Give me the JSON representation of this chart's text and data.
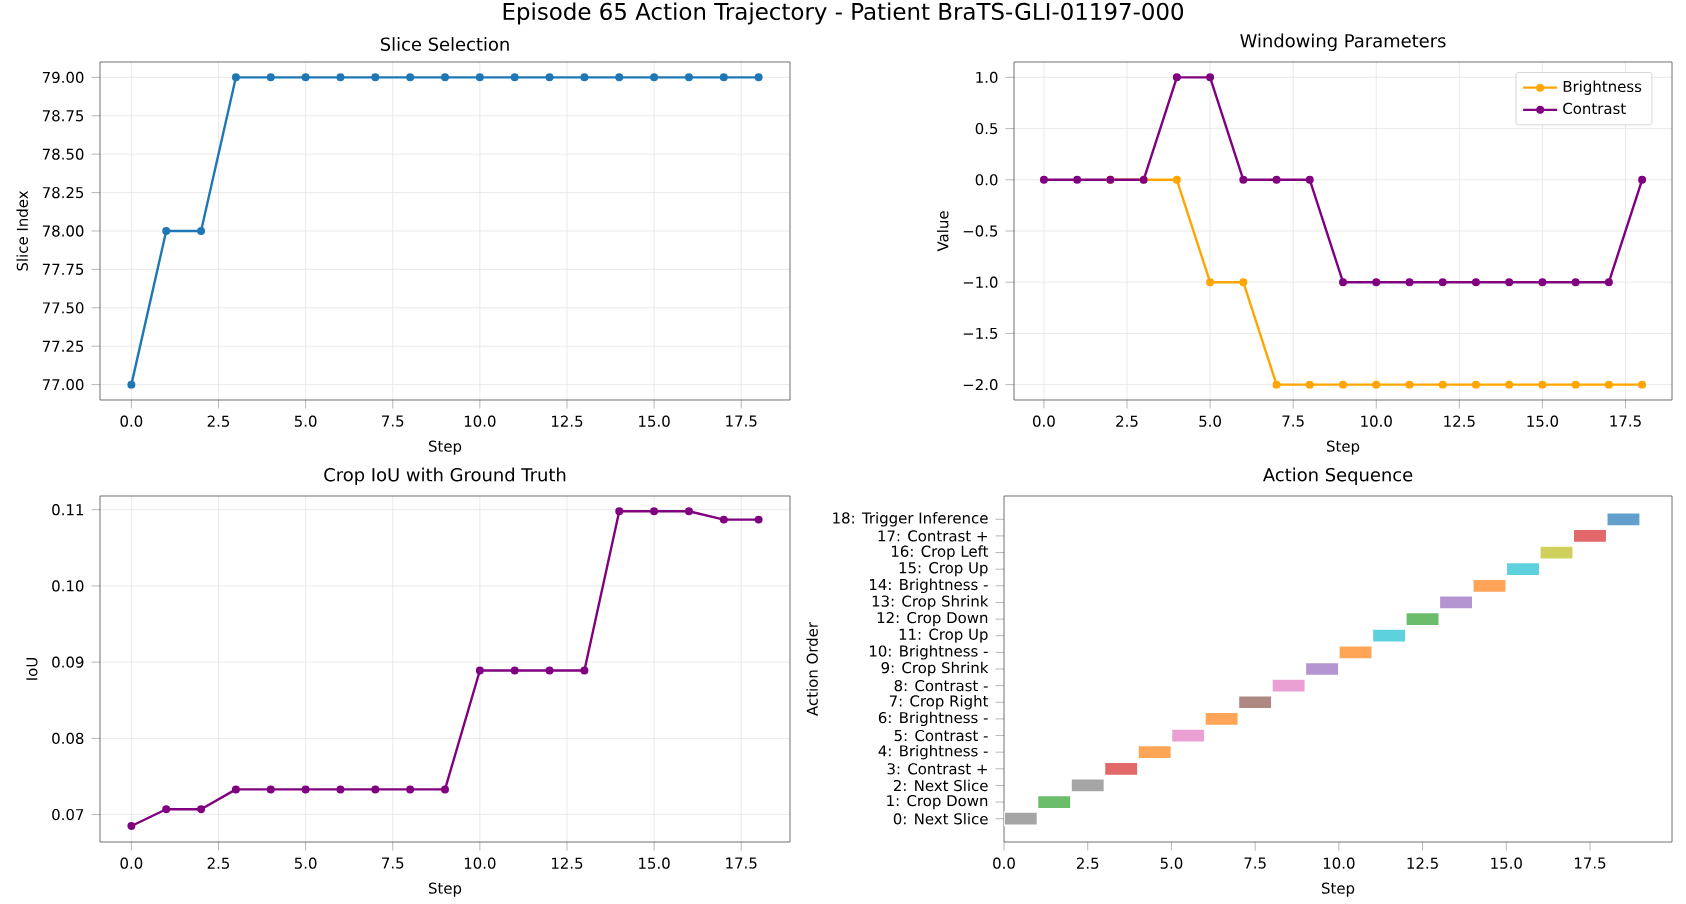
{
  "chart_data": [
    {
      "type": "line",
      "title": "Slice Selection",
      "xlabel": "Step",
      "ylabel": "Slice Index",
      "annotations": [
        "Episode 65 Action Trajectory - Patient BraTS-GLI-01197-000"
      ],
      "x": [
        0,
        1,
        2,
        3,
        4,
        5,
        6,
        7,
        8,
        9,
        10,
        11,
        12,
        13,
        14,
        15,
        16,
        17,
        18
      ],
      "values": [
        77,
        78,
        78,
        79,
        79,
        79,
        79,
        79,
        79,
        79,
        79,
        79,
        79,
        79,
        79,
        79,
        79,
        79,
        79
      ],
      "color": "#1f77b4",
      "xlim": [
        -0.9,
        18.9
      ],
      "ylim": [
        76.9,
        79.1
      ],
      "xticks": [
        {
          "value": 0,
          "label": "0.0"
        },
        {
          "value": 2.5,
          "label": "2.5"
        },
        {
          "value": 5,
          "label": "5.0"
        },
        {
          "value": 7.5,
          "label": "7.5"
        },
        {
          "value": 10,
          "label": "10.0"
        },
        {
          "value": 12.5,
          "label": "12.5"
        },
        {
          "value": 15,
          "label": "15.0"
        },
        {
          "value": 17.5,
          "label": "17.5"
        }
      ],
      "yticks": [
        {
          "value": 77,
          "label": "77.00"
        },
        {
          "value": 77.25,
          "label": "77.25"
        },
        {
          "value": 77.5,
          "label": "77.50"
        },
        {
          "value": 77.75,
          "label": "77.75"
        },
        {
          "value": 78,
          "label": "78.00"
        },
        {
          "value": 78.25,
          "label": "78.25"
        },
        {
          "value": 78.5,
          "label": "78.50"
        },
        {
          "value": 78.75,
          "label": "78.75"
        },
        {
          "value": 79,
          "label": "79.00"
        }
      ],
      "grid": true,
      "marker": "circle"
    },
    {
      "type": "line",
      "title": "Windowing Parameters",
      "xlabel": "Step",
      "ylabel": "Value",
      "x": [
        0,
        1,
        2,
        3,
        4,
        5,
        6,
        7,
        8,
        9,
        10,
        11,
        12,
        13,
        14,
        15,
        16,
        17,
        18
      ],
      "series": [
        {
          "name": "Brightness",
          "color": "#ffa500",
          "values": [
            null,
            null,
            0,
            0,
            0,
            -1,
            -1,
            -2,
            -2,
            -2,
            -2,
            -2,
            -2,
            -2,
            -2,
            -2,
            -2,
            -2,
            -2
          ]
        },
        {
          "name": "Contrast",
          "color": "#800080",
          "values": [
            0,
            0,
            0,
            0,
            1,
            1,
            0,
            0,
            0,
            -1,
            -1,
            -1,
            -1,
            -1,
            -1,
            -1,
            -1,
            -1,
            0
          ]
        }
      ],
      "xlim": [
        -0.9,
        18.9
      ],
      "ylim": [
        -2.15,
        1.15
      ],
      "xticks": [
        {
          "value": 0,
          "label": "0.0"
        },
        {
          "value": 2.5,
          "label": "2.5"
        },
        {
          "value": 5,
          "label": "5.0"
        },
        {
          "value": 7.5,
          "label": "7.5"
        },
        {
          "value": 10,
          "label": "10.0"
        },
        {
          "value": 12.5,
          "label": "12.5"
        },
        {
          "value": 15,
          "label": "15.0"
        },
        {
          "value": 17.5,
          "label": "17.5"
        }
      ],
      "yticks": [
        {
          "value": -2,
          "label": "−2.0"
        },
        {
          "value": -1.5,
          "label": "−1.5"
        },
        {
          "value": -1,
          "label": "−1.0"
        },
        {
          "value": -0.5,
          "label": "−0.5"
        },
        {
          "value": 0,
          "label": "0.0"
        },
        {
          "value": 0.5,
          "label": "0.5"
        },
        {
          "value": 1,
          "label": "1.0"
        }
      ],
      "grid": true,
      "marker": "circle",
      "legend": "top right"
    },
    {
      "type": "line",
      "title": "Crop IoU with Ground Truth",
      "xlabel": "Step",
      "ylabel": "IoU",
      "x": [
        0,
        1,
        2,
        3,
        4,
        5,
        6,
        7,
        8,
        9,
        10,
        11,
        12,
        13,
        14,
        15,
        16,
        17,
        18
      ],
      "values": [
        0.0685,
        0.0707,
        0.0707,
        0.0733,
        0.0733,
        0.0733,
        0.0733,
        0.0733,
        0.0733,
        0.0733,
        0.0889,
        0.0889,
        0.0889,
        0.0889,
        0.1098,
        0.1098,
        0.1098,
        0.1087,
        0.1087
      ],
      "color": "#800080",
      "xlim": [
        -0.9,
        18.9
      ],
      "ylim": [
        0.0664,
        0.1118
      ],
      "xticks": [
        {
          "value": 0,
          "label": "0.0"
        },
        {
          "value": 2.5,
          "label": "2.5"
        },
        {
          "value": 5,
          "label": "5.0"
        },
        {
          "value": 7.5,
          "label": "7.5"
        },
        {
          "value": 10,
          "label": "10.0"
        },
        {
          "value": 12.5,
          "label": "12.5"
        },
        {
          "value": 15,
          "label": "15.0"
        },
        {
          "value": 17.5,
          "label": "17.5"
        }
      ],
      "yticks": [
        {
          "value": 0.07,
          "label": "0.07"
        },
        {
          "value": 0.08,
          "label": "0.08"
        },
        {
          "value": 0.09,
          "label": "0.09"
        },
        {
          "value": 0.1,
          "label": "0.10"
        },
        {
          "value": 0.11,
          "label": "0.11"
        }
      ],
      "grid": true,
      "marker": "circle"
    },
    {
      "type": "bar",
      "orientation": "horizontal",
      "title": "Action Sequence",
      "xlabel": "Step",
      "ylabel": "Action Order",
      "categories": [
        "18: Trigger Inference",
        "17: Contrast +",
        "16: Crop Left",
        "15: Crop Up",
        "14: Brightness -",
        "13: Crop Shrink",
        "12: Crop Down",
        "11: Crop Up",
        "10: Brightness -",
        "9: Crop Shrink",
        "8: Contrast -",
        "7: Crop Right",
        "6: Brightness -",
        "5: Contrast -",
        "4: Brightness -",
        "3: Contrast +",
        "2: Next Slice",
        "1: Crop Down",
        "0: Next Slice"
      ],
      "base": [
        18,
        17,
        16,
        15,
        14,
        13,
        12,
        11,
        10,
        9,
        8,
        7,
        6,
        5,
        4,
        3,
        2,
        1,
        0
      ],
      "values": [
        1,
        1,
        1,
        1,
        1,
        1,
        1,
        1,
        1,
        1,
        1,
        1,
        1,
        1,
        1,
        1,
        1,
        1,
        1
      ],
      "colors": [
        "#62a0cb",
        "#e26869",
        "#d0d15c",
        "#5dd2de",
        "#ffa557",
        "#b495d1",
        "#6bbd6b",
        "#5dd2de",
        "#ffa557",
        "#b495d1",
        "#eba0d4",
        "#ae8981",
        "#ffa557",
        "#eba0d4",
        "#ffa557",
        "#e26869",
        "#a5a5a5",
        "#6bbd6b",
        "#a5a5a5"
      ],
      "xlim": [
        0,
        19.95
      ],
      "xticks": [
        {
          "value": 0,
          "label": "0.0"
        },
        {
          "value": 2.5,
          "label": "2.5"
        },
        {
          "value": 5,
          "label": "5.0"
        },
        {
          "value": 7.5,
          "label": "7.5"
        },
        {
          "value": 10,
          "label": "10.0"
        },
        {
          "value": 12.5,
          "label": "12.5"
        },
        {
          "value": 15,
          "label": "15.0"
        },
        {
          "value": 17.5,
          "label": "17.5"
        }
      ]
    }
  ]
}
